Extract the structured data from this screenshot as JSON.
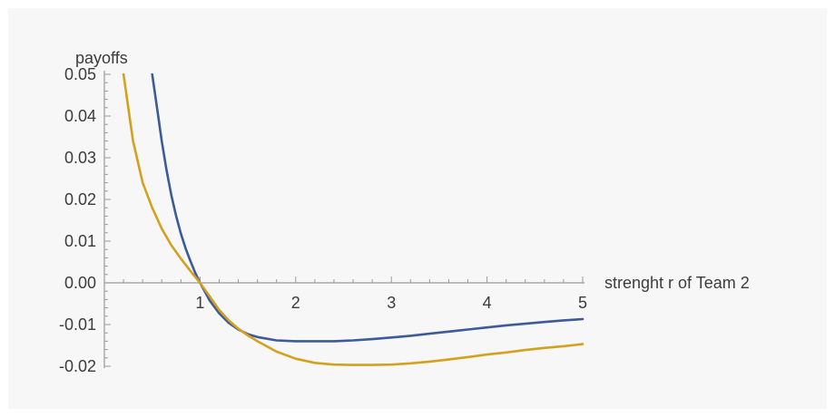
{
  "chart_data": {
    "type": "line",
    "title": "",
    "ylabel": "payoffs",
    "xlabel": "strenght r of Team 2",
    "xlim": [
      0,
      5
    ],
    "ylim": [
      -0.02,
      0.05
    ],
    "x_ticks": [
      1,
      2,
      3,
      4,
      5
    ],
    "x_tick_labels": [
      "1",
      "2",
      "3",
      "4",
      "5"
    ],
    "y_ticks": [
      0.05,
      0.04,
      0.03,
      0.02,
      0.01,
      0.0,
      -0.01,
      -0.02
    ],
    "y_tick_labels": [
      "0.05",
      "0.04",
      "0.03",
      "0.02",
      "0.01",
      "0.00",
      "-0.01",
      "-0.02"
    ],
    "grid": false,
    "legend": "none",
    "series": [
      {
        "color": "#3b5b9a",
        "x": [
          0.5,
          0.55,
          0.6,
          0.65,
          0.7,
          0.75,
          0.8,
          0.85,
          0.9,
          0.95,
          1.0,
          1.1,
          1.2,
          1.3,
          1.4,
          1.5,
          1.6,
          1.8,
          2.0,
          2.2,
          2.4,
          2.6,
          2.8,
          3.0,
          3.2,
          3.4,
          3.6,
          3.8,
          4.0,
          4.2,
          4.4,
          4.6,
          4.8,
          5.0
        ],
        "y": [
          0.05,
          0.042,
          0.034,
          0.027,
          0.021,
          0.016,
          0.0118,
          0.0082,
          0.0052,
          0.0024,
          0.0,
          -0.0042,
          -0.0073,
          -0.0096,
          -0.0112,
          -0.0123,
          -0.013,
          -0.0138,
          -0.014,
          -0.014,
          -0.014,
          -0.0138,
          -0.0135,
          -0.0131,
          -0.0127,
          -0.0122,
          -0.0117,
          -0.0112,
          -0.0107,
          -0.0102,
          -0.0098,
          -0.0094,
          -0.009,
          -0.0087
        ]
      },
      {
        "color": "#d4a11e",
        "x": [
          0.2,
          0.3,
          0.4,
          0.5,
          0.6,
          0.7,
          0.8,
          0.9,
          1.0,
          1.1,
          1.2,
          1.3,
          1.4,
          1.5,
          1.6,
          1.8,
          2.0,
          2.2,
          2.4,
          2.6,
          2.8,
          3.0,
          3.2,
          3.4,
          3.6,
          3.8,
          4.0,
          4.2,
          4.4,
          4.6,
          4.8,
          5.0
        ],
        "y": [
          0.05,
          0.034,
          0.024,
          0.018,
          0.013,
          0.009,
          0.0058,
          0.0028,
          0.0,
          -0.0032,
          -0.0065,
          -0.009,
          -0.011,
          -0.0126,
          -0.014,
          -0.0165,
          -0.0182,
          -0.0192,
          -0.0196,
          -0.0197,
          -0.0197,
          -0.0196,
          -0.0193,
          -0.0189,
          -0.0184,
          -0.0178,
          -0.0172,
          -0.0167,
          -0.0161,
          -0.0156,
          -0.0152,
          -0.0147
        ]
      }
    ]
  }
}
